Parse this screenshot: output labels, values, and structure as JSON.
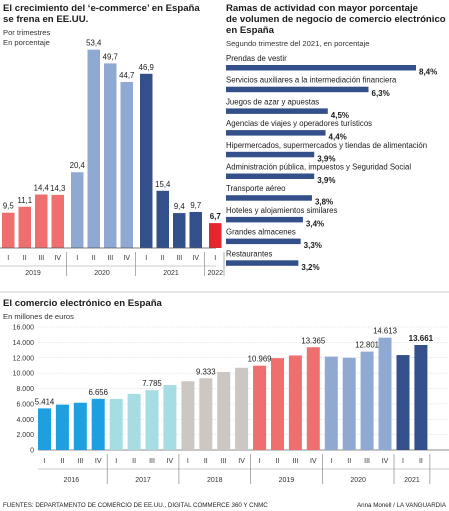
{
  "footer": {
    "sources": "FUENTES: DEPARTAMENTO DE COMERCIO DE EE.UU., DIGITAL COMMERCE 360 Y CNMC",
    "credit": "Anna Monell / LA VANGUARDIA"
  },
  "chart_data": [
    {
      "type": "bar",
      "title_lines": [
        "El crecimiento del ‘e-commerce’ en España",
        "se frena en EE.UU."
      ],
      "subtitle_lines": [
        "Por trimestres",
        "En porcentaje"
      ],
      "groups": [
        {
          "label": "2019",
          "quarters": [
            "I",
            "II",
            "III",
            "IV"
          ],
          "values": [
            9.5,
            11.1,
            14.4,
            14.3
          ],
          "value_labels": [
            "9,5",
            "11,1",
            "14,4",
            "14,3"
          ],
          "color": "#ef6f6f"
        },
        {
          "label": "2020",
          "quarters": [
            "I",
            "II",
            "III",
            "IV"
          ],
          "values": [
            20.4,
            53.4,
            49.7,
            44.7
          ],
          "value_labels": [
            "20,4",
            "53,4",
            "49,7",
            "44,7"
          ],
          "color": "#8fa9d3"
        },
        {
          "label": "2021",
          "quarters": [
            "I",
            "II",
            "III",
            "IV"
          ],
          "values": [
            46.9,
            15.4,
            9.4,
            9.7
          ],
          "value_labels": [
            "46,9",
            "15,4",
            "9,4",
            "9,7"
          ],
          "color": "#34508a"
        },
        {
          "label": "2022",
          "quarters": [
            "I"
          ],
          "values": [
            6.7
          ],
          "value_labels": [
            "6,7"
          ],
          "color": "#e5262d",
          "bold": true
        }
      ]
    },
    {
      "type": "bar",
      "orientation": "horizontal",
      "title_lines": [
        "Ramas de actividad con mayor porcentaje",
        "de volumen de negocio de comercio electrónico",
        "en España"
      ],
      "subtitle": "Segundo trimestre del 2021, en porcentaje",
      "bar_color": "#34508a",
      "categories": [
        "Prendas de vestir",
        "Servicios auxiliares a la intermediación financiera",
        "Juegos de azar y apuestas",
        "Agencias de viajes y operadores turísticos",
        "Hipermercados, supermercados y tiendas de alimentación",
        "Administración pública, impuestos y Seguridad Social",
        "Transporte aéreo",
        "Hoteles y alojamientos similares",
        "Grandes almacenes",
        "Restaurantes"
      ],
      "values": [
        8.4,
        6.3,
        4.5,
        4.4,
        3.9,
        3.9,
        3.8,
        3.4,
        3.3,
        3.2
      ],
      "value_labels": [
        "8,4%",
        "6,3%",
        "4,5%",
        "4,4%",
        "3,9%",
        "3,9%",
        "3,8%",
        "3,4%",
        "3,3%",
        "3,2%"
      ]
    },
    {
      "type": "bar",
      "title": "El comercio electrónico en España",
      "subtitle": "En millones de euros",
      "ylim": [
        0,
        16000
      ],
      "yticks": [
        0,
        2000,
        4000,
        6000,
        8000,
        10000,
        12000,
        14000,
        16000
      ],
      "ytick_labels": [
        "0",
        "2.000",
        "4.000",
        "6.000",
        "8.000",
        "10.000",
        "12.000",
        "14.000",
        "16.000"
      ],
      "grid": true,
      "groups": [
        {
          "label": "2016",
          "quarters": [
            "I",
            "II",
            "III",
            "IV"
          ],
          "values": [
            5414,
            5900,
            6150,
            6656
          ],
          "color": "#1e9fe0",
          "labels": {
            "0": "5.414",
            "3": "6.656"
          }
        },
        {
          "label": "2017",
          "quarters": [
            "I",
            "II",
            "III",
            "IV"
          ],
          "values": [
            6650,
            7300,
            7785,
            8450
          ],
          "color": "#a6dde3",
          "labels": {
            "2": "7.785"
          }
        },
        {
          "label": "2018",
          "quarters": [
            "I",
            "II",
            "III",
            "IV"
          ],
          "values": [
            8950,
            9333,
            10150,
            10700
          ],
          "color": "#cdc7c3",
          "labels": {
            "1": "9.333"
          }
        },
        {
          "label": "2019",
          "quarters": [
            "I",
            "II",
            "III",
            "IV"
          ],
          "values": [
            10969,
            11950,
            12300,
            13365
          ],
          "color": "#ef6f6f",
          "labels": {
            "0": "10.969",
            "3": "13.365"
          }
        },
        {
          "label": "2020",
          "quarters": [
            "I",
            "II",
            "III",
            "IV"
          ],
          "values": [
            12150,
            12000,
            12801,
            14613
          ],
          "color": "#8fa9d3",
          "labels": {
            "2": "12.801",
            "3": "14.613"
          }
        },
        {
          "label": "2021",
          "quarters": [
            "I",
            "II"
          ],
          "values": [
            12350,
            13661
          ],
          "color": "#34508a",
          "labels": {
            "1": "13.661"
          },
          "bold_labels": {
            "1": true
          }
        }
      ]
    }
  ]
}
